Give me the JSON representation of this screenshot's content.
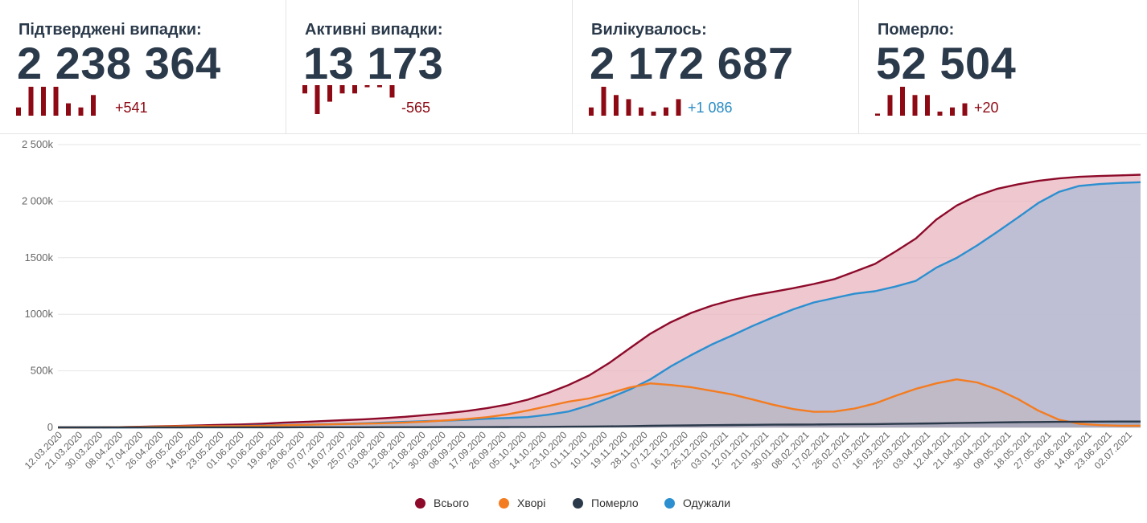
{
  "cards": [
    {
      "title": "Підтверджені випадки:",
      "value": "2 238 364",
      "delta": "+541",
      "delta_color": "#8d0a14",
      "spark": [
        2,
        7,
        7,
        7,
        3,
        2,
        5
      ]
    },
    {
      "title": "Активні випадки:",
      "value": "13 173",
      "delta": "-565",
      "delta_color": "#8d0a14",
      "spark": [
        -2,
        -7,
        -4,
        -2,
        -2,
        -0.5,
        -0.5,
        -3
      ]
    },
    {
      "title": "Вилікувалось:",
      "value": "2 172 687",
      "delta": "+1 086",
      "delta_color": "#2b8cc4",
      "spark": [
        2,
        7,
        5,
        4,
        2,
        1,
        2,
        4
      ]
    },
    {
      "title": "Померло:",
      "value": "52 504",
      "delta": "+20",
      "delta_color": "#8d0a14",
      "spark": [
        0.5,
        5,
        7,
        5,
        5,
        1,
        2,
        3
      ]
    }
  ],
  "colors": {
    "total": "#8d0a2a",
    "sick": "#f47c20",
    "dead": "#2b3a4b",
    "recovered": "#2b8fd0",
    "total_fill": "#e8b4bf",
    "recovered_fill": "#b8bed5"
  },
  "chart_data": {
    "type": "area",
    "ylim": [
      0,
      2500000
    ],
    "y_ticks": [
      0,
      500000,
      1000000,
      1500000,
      2000000,
      2500000
    ],
    "y_tick_labels": [
      "0",
      "500k",
      "1000k",
      "1500k",
      "2 000k",
      "2 500k"
    ],
    "x_tick_labels": [
      "12.03.2020",
      "21.03.2020",
      "30.03.2020",
      "08.04.2020",
      "17.04.2020",
      "26.04.2020",
      "05.05.2020",
      "14.05.2020",
      "23.05.2020",
      "01.06.2020",
      "10.06.2020",
      "19.06.2020",
      "28.06.2020",
      "07.07.2020",
      "16.07.2020",
      "25.07.2020",
      "03.08.2020",
      "12.08.2020",
      "21.08.2020",
      "30.08.2020",
      "08.09.2020",
      "17.09.2020",
      "26.09.2020",
      "05.10.2020",
      "14.10.2020",
      "23.10.2020",
      "01.11.2020",
      "10.11.2020",
      "19.11.2020",
      "28.11.2020",
      "07.12.2020",
      "16.12.2020",
      "25.12.2020",
      "03.01.2021",
      "12.01.2021",
      "21.01.2021",
      "30.01.2021",
      "08.02.2021",
      "17.02.2021",
      "26.02.2021",
      "07.03.2021",
      "16.03.2021",
      "25.03.2021",
      "03.04.2021",
      "12.04.2021",
      "21.04.2021",
      "30.04.2021",
      "09.05.2021",
      "18.05.2021",
      "27.05.2021",
      "05.06.2021",
      "14.06.2021",
      "23.06.2021",
      "02.07.2021"
    ],
    "series": [
      {
        "name": "Всього",
        "key": "total",
        "values": [
          3,
          70,
          450,
          2100,
          5400,
          9600,
          13700,
          18600,
          22800,
          26500,
          33000,
          42000,
          48000,
          56000,
          64000,
          72000,
          82000,
          94000,
          109000,
          125000,
          144000,
          170000,
          202000,
          245000,
          305000,
          375000,
          459000,
          571000,
          700000,
          828000,
          930000,
          1012000,
          1076000,
          1126000,
          1166000,
          1198000,
          1231000,
          1268000,
          1310000,
          1377000,
          1445000,
          1555000,
          1670000,
          1837000,
          1962000,
          2048000,
          2110000,
          2149000,
          2180000,
          2201000,
          2215000,
          2222000,
          2228000,
          2234000
        ]
      },
      {
        "name": "Хворі",
        "key": "sick",
        "values": [
          3,
          65,
          420,
          1900,
          4600,
          7800,
          9900,
          11300,
          11100,
          12000,
          14800,
          19000,
          22500,
          26500,
          30000,
          33500,
          37000,
          43000,
          51000,
          62000,
          74000,
          90000,
          115000,
          150000,
          188000,
          228000,
          256000,
          302000,
          353000,
          389000,
          375000,
          355000,
          324000,
          292000,
          247000,
          201000,
          162000,
          138000,
          140000,
          167000,
          212000,
          279000,
          341000,
          389000,
          425000,
          398000,
          336000,
          251000,
          148000,
          68000,
          32000,
          20000,
          15000,
          14000
        ]
      },
      {
        "name": "Померло",
        "key": "dead",
        "values": [
          0,
          1,
          9,
          52,
          161,
          250,
          350,
          480,
          650,
          750,
          850,
          1050,
          1180,
          1350,
          1550,
          1700,
          1850,
          2050,
          2250,
          2500,
          2750,
          3100,
          3600,
          4300,
          5100,
          6200,
          7500,
          9300,
          11600,
          14000,
          16200,
          18100,
          19800,
          21300,
          22700,
          23900,
          24900,
          25800,
          26800,
          27900,
          29300,
          31100,
          33200,
          35800,
          38600,
          41200,
          43800,
          46000,
          47800,
          49100,
          50200,
          50900,
          51600,
          52100
        ]
      },
      {
        "name": "Одужали",
        "key": "recovered",
        "values": [
          0,
          4,
          21,
          148,
          639,
          1550,
          3450,
          6820,
          11050,
          13750,
          17350,
          21950,
          24320,
          28150,
          32450,
          36800,
          43150,
          48950,
          55750,
          60500,
          67250,
          76900,
          83400,
          90700,
          111900,
          140800,
          195500,
          259700,
          335400,
          425000,
          538800,
          638900,
          732200,
          812700,
          896300,
          973100,
          1044100,
          1104200,
          1143200,
          1182100,
          1203700,
          1244900,
          1295800,
          1412200,
          1498400,
          1608800,
          1730200,
          1856000,
          1984100,
          2081900,
          2134800,
          2151100,
          2161400,
          2167900
        ]
      }
    ]
  },
  "legend": [
    {
      "key": "total",
      "label": "Всього"
    },
    {
      "key": "sick",
      "label": "Хворі"
    },
    {
      "key": "dead",
      "label": "Померло"
    },
    {
      "key": "recovered",
      "label": "Одужали"
    }
  ]
}
